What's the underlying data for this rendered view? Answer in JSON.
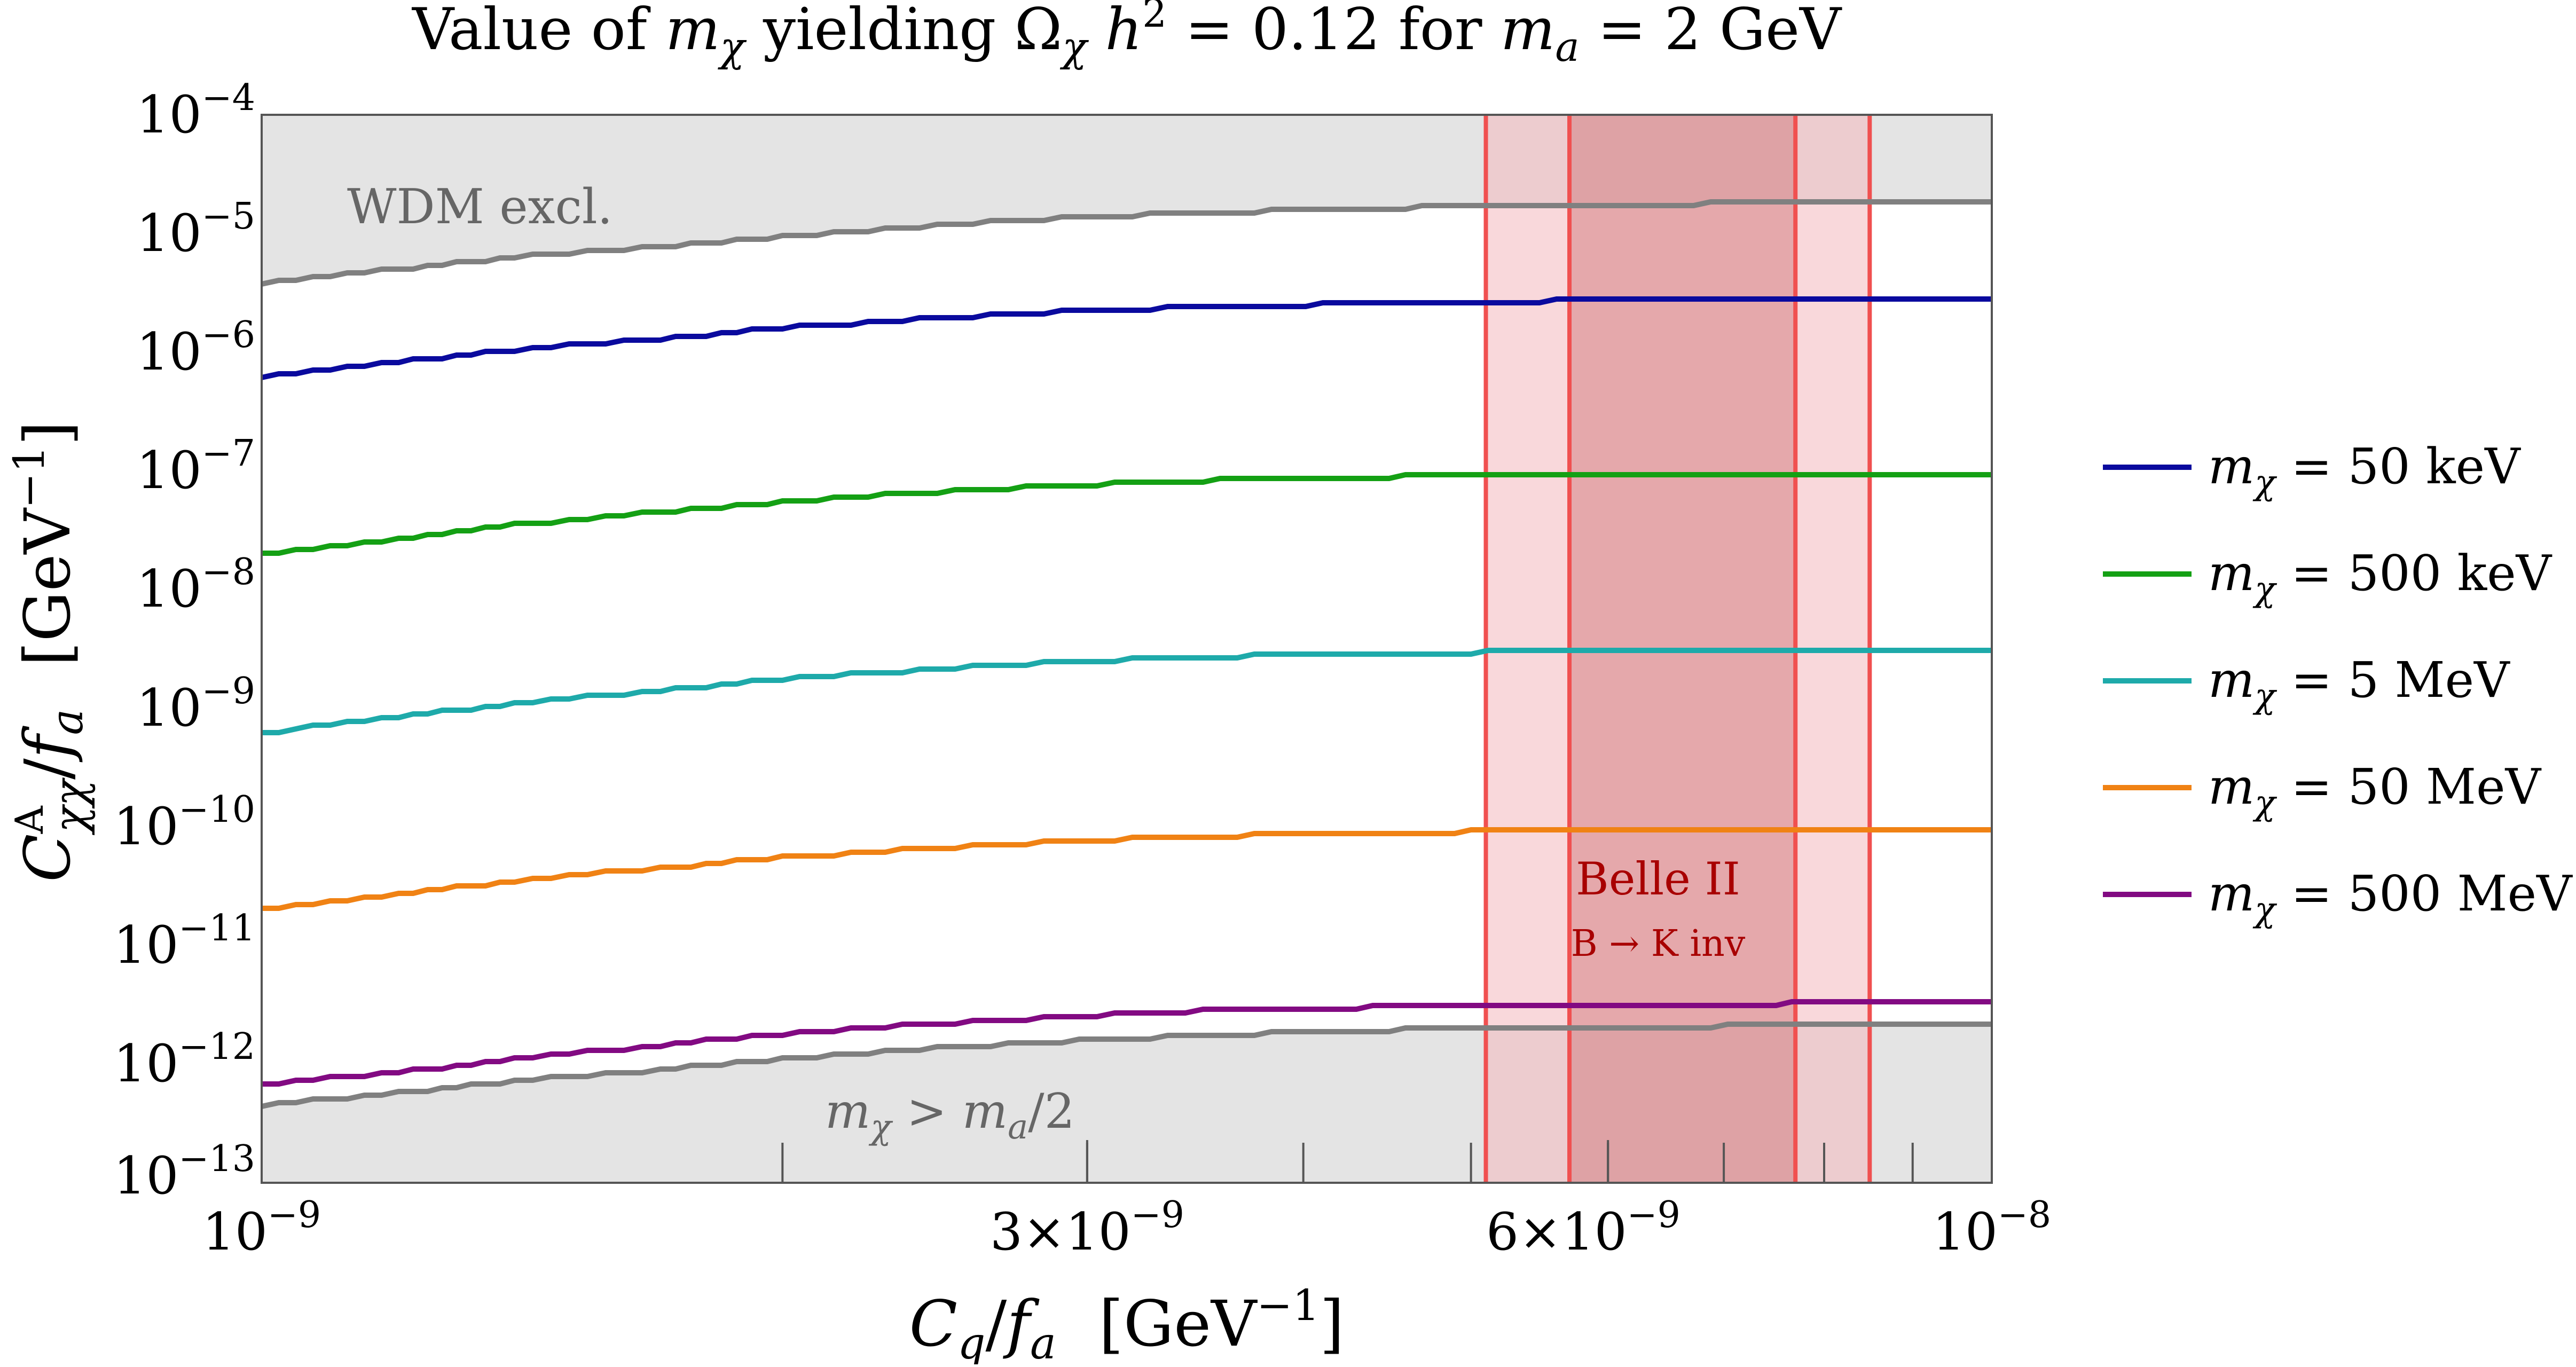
{
  "chart_data": {
    "type": "line",
    "title": "Value of mχ yielding Ωχ h² = 0.12 for ma = 2 GeV",
    "title_parts": {
      "pre": "Value of ",
      "m": "m",
      "chi": "χ",
      "mid": " yielding ",
      "Omega": "Ω",
      "h": "h",
      "sq": "2",
      "eq": " = 0.12 for ",
      "ma_m": "m",
      "ma_a": "a",
      "post": " = 2 GeV"
    },
    "xlabel": "Cq/fa [GeV⁻¹]",
    "xlabel_parts": {
      "C": "C",
      "q": "q",
      "slash": "/",
      "f": "f",
      "a": "a",
      "unit": "[GeV",
      "exp": "−1",
      "close": "]"
    },
    "ylabel": "Cᴬχχ/fa [GeV⁻¹]",
    "ylabel_parts": {
      "C": "C",
      "A": "A",
      "chichi": "χχ",
      "slash": "/",
      "f": "f",
      "a": "a",
      "unit": "[GeV",
      "exp": "−1",
      "close": "]"
    },
    "xscale": "log",
    "yscale": "log",
    "xlim": [
      1e-09,
      1e-08
    ],
    "ylim": [
      1e-13,
      0.0001
    ],
    "x_ticks": [
      {
        "value": 1e-09,
        "mant": "10",
        "exp": "−9"
      },
      {
        "value": 3e-09,
        "mant": "3×10",
        "exp": "−9"
      },
      {
        "value": 6e-09,
        "mant": "6×10",
        "exp": "−9"
      },
      {
        "value": 1e-08,
        "mant": "10",
        "exp": "−8"
      }
    ],
    "y_ticks": [
      {
        "value": 0.0001,
        "mant": "10",
        "exp": "−4"
      },
      {
        "value": 1e-05,
        "mant": "10",
        "exp": "−5"
      },
      {
        "value": 1e-06,
        "mant": "10",
        "exp": "−6"
      },
      {
        "value": 1e-07,
        "mant": "10",
        "exp": "−7"
      },
      {
        "value": 1e-08,
        "mant": "10",
        "exp": "−8"
      },
      {
        "value": 1e-09,
        "mant": "10",
        "exp": "−9"
      },
      {
        "value": 1e-10,
        "mant": "10",
        "exp": "−10"
      },
      {
        "value": 1e-11,
        "mant": "10",
        "exp": "−11"
      },
      {
        "value": 1e-12,
        "mant": "10",
        "exp": "−12"
      },
      {
        "value": 1e-13,
        "mant": "10",
        "exp": "−13"
      }
    ],
    "x": [
      1e-09,
      1.2e-09,
      1.4e-09,
      1.7e-09,
      2e-09,
      2.4e-09,
      2.9e-09,
      3.5e-09,
      4.2e-09,
      5e-09,
      6e-09,
      7.2e-09,
      8.5e-09,
      1e-08
    ],
    "series": [
      {
        "name": "mχ = 50 keV",
        "label_val": " = 50 keV",
        "color": "#0a0a9e",
        "values": [
          6.2e-07,
          8.3e-07,
          1.05e-06,
          1.3e-06,
          1.6e-06,
          1.9e-06,
          2.2e-06,
          2.4e-06,
          2.55e-06,
          2.65e-06,
          2.75e-06,
          2.8e-06,
          2.8e-06,
          2.8e-06
        ]
      },
      {
        "name": "mχ = 500 keV",
        "label_val": " = 500 keV",
        "color": "#14a014",
        "values": [
          2e-08,
          2.7e-08,
          3.5e-08,
          4.5e-08,
          5.5e-08,
          6.5e-08,
          7.5e-08,
          8.3e-08,
          8.8e-08,
          9.1e-08,
          9.4e-08,
          9.6e-08,
          9.6e-08,
          9.6e-08
        ]
      },
      {
        "name": "mχ = 5 MeV",
        "label_val": " = 5 MeV",
        "color": "#1eaaaa",
        "values": [
          6.2e-10,
          8.4e-10,
          1.1e-09,
          1.4e-09,
          1.75e-09,
          2.1e-09,
          2.45e-09,
          2.7e-09,
          2.85e-09,
          2.95e-09,
          3.05e-09,
          3.1e-09,
          3.1e-09,
          3.1e-09
        ]
      },
      {
        "name": "mχ = 50 MeV",
        "label_val": " = 50 MeV",
        "color": "#f08214",
        "values": [
          2e-11,
          2.7e-11,
          3.5e-11,
          4.5e-11,
          5.5e-11,
          6.5e-11,
          7.5e-11,
          8.3e-11,
          8.8e-11,
          9.1e-11,
          9.4e-11,
          9.6e-11,
          9.6e-11,
          9.6e-11
        ]
      },
      {
        "name": "mχ = 500 MeV",
        "label_val": " = 500 MeV",
        "color": "#820a82",
        "values": [
          6.8e-13,
          8.5e-13,
          1.1e-12,
          1.45e-12,
          1.8e-12,
          2.15e-12,
          2.5e-12,
          2.8e-12,
          3e-12,
          3.05e-12,
          3.1e-12,
          3.2e-12,
          3.3e-12,
          3.3e-12
        ]
      }
    ],
    "bounds": {
      "color": "#808080",
      "fill": "#e4e4e4",
      "wdm": {
        "label": "WDM excl.",
        "values": [
          3.8e-06,
          5e-06,
          6.3e-06,
          7.8e-06,
          9.5e-06,
          1.15e-05,
          1.35e-05,
          1.5e-05,
          1.6e-05,
          1.7e-05,
          1.75e-05,
          1.8e-05,
          1.8e-05,
          1.8e-05
        ]
      },
      "kinematic": {
        "label_m": "m",
        "label_chi": "χ",
        "label_gt": " > ",
        "label_ma_m": "m",
        "label_ma_a": "a",
        "label_end": "/2",
        "values": [
          4.5e-13,
          5.7e-13,
          7.2e-13,
          9e-13,
          1.1e-12,
          1.35e-12,
          1.55e-12,
          1.75e-12,
          1.9e-12,
          2e-12,
          2.05e-12,
          2.1e-12,
          2.1e-12,
          2.1e-12
        ]
      }
    },
    "belle_band": {
      "label": "Belle II",
      "sublabel": "B → K inv",
      "outer": [
        5.1e-09,
        8.5e-09
      ],
      "inner": [
        5.7e-09,
        7.7e-09
      ],
      "line_color": "#f05050",
      "outer_fill": "#f4b8be",
      "inner_fill": "#cc6e72"
    },
    "legend_position": "right"
  }
}
